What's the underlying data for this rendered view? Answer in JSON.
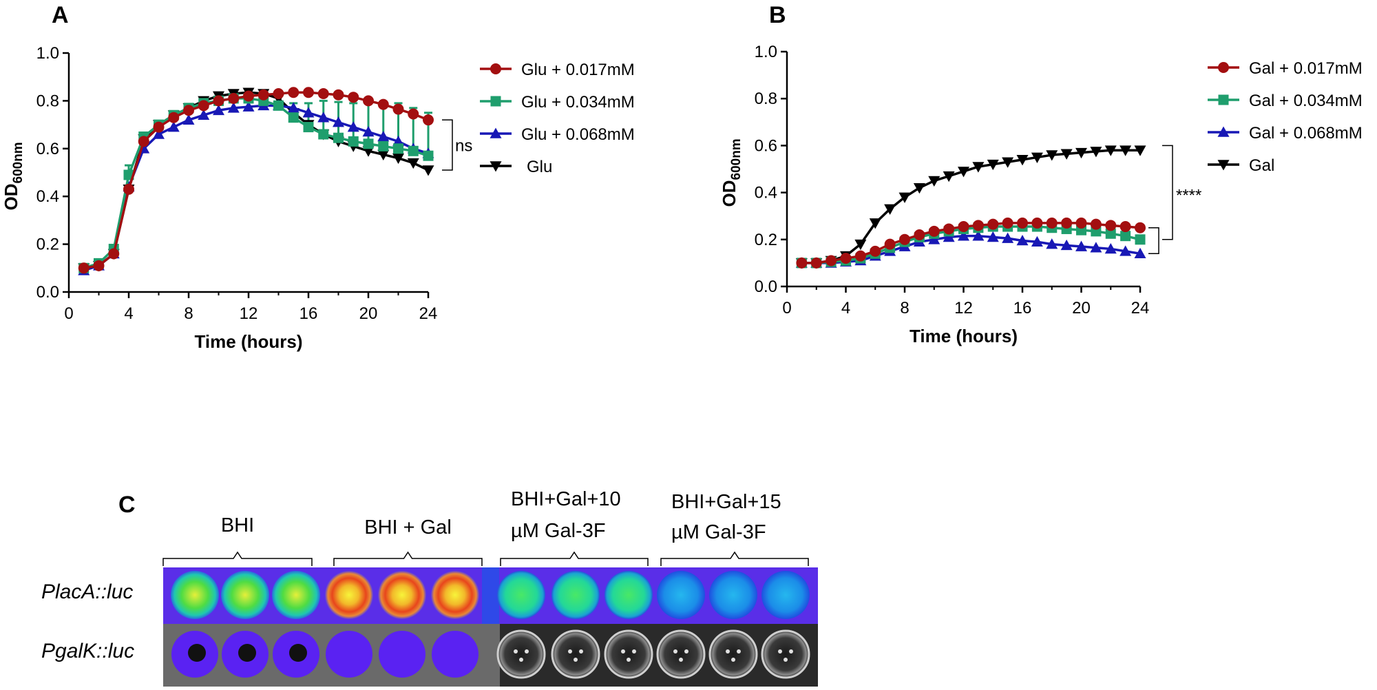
{
  "colors": {
    "red": "#a30f10",
    "green": "#1f9e6d",
    "blue": "#1818b5",
    "black": "#000000"
  },
  "chart_data": [
    {
      "id": "A",
      "type": "line",
      "panel_label": "A",
      "title": "",
      "xlabel": "Time (hours)",
      "ylabel_main": "OD",
      "ylabel_sub": "600nm",
      "xlim": [
        0,
        24
      ],
      "ylim": [
        0.0,
        1.0
      ],
      "xticks": [
        0,
        4,
        8,
        12,
        16,
        20,
        24
      ],
      "yticks": [
        "0.0",
        "0.2",
        "0.4",
        "0.6",
        "0.8",
        "1.0"
      ],
      "grid": false,
      "legend_position": "right",
      "x": [
        1,
        2,
        3,
        4,
        5,
        6,
        7,
        8,
        9,
        10,
        11,
        12,
        13,
        14,
        15,
        16,
        17,
        18,
        19,
        20,
        21,
        22,
        23,
        24
      ],
      "series": [
        {
          "name": "Glu + 0.017mM",
          "color": "#a30f10",
          "marker": "circle",
          "values": [
            0.1,
            0.11,
            0.16,
            0.43,
            0.63,
            0.69,
            0.73,
            0.76,
            0.78,
            0.8,
            0.81,
            0.82,
            0.825,
            0.83,
            0.835,
            0.835,
            0.83,
            0.825,
            0.815,
            0.8,
            0.785,
            0.765,
            0.745,
            0.72
          ]
        },
        {
          "name": "Glu + 0.034mM",
          "color": "#1f9e6d",
          "marker": "square",
          "values": [
            0.1,
            0.12,
            0.18,
            0.49,
            0.65,
            0.7,
            0.74,
            0.77,
            0.79,
            0.8,
            0.81,
            0.81,
            0.8,
            0.78,
            0.73,
            0.69,
            0.66,
            0.645,
            0.63,
            0.62,
            0.61,
            0.6,
            0.59,
            0.57
          ],
          "error": [
            0,
            0.01,
            0.01,
            0.04,
            0.01,
            0.01,
            0.01,
            0.01,
            0.01,
            0.01,
            0.01,
            0.01,
            0.01,
            0.01,
            0.06,
            0.1,
            0.14,
            0.15,
            0.16,
            0.17,
            0.18,
            0.19,
            0.18,
            0.18
          ]
        },
        {
          "name": "Glu + 0.068mM",
          "color": "#1818b5",
          "marker": "triangle-up",
          "values": [
            0.09,
            0.11,
            0.16,
            0.44,
            0.6,
            0.66,
            0.69,
            0.72,
            0.74,
            0.76,
            0.77,
            0.775,
            0.78,
            0.78,
            0.77,
            0.75,
            0.73,
            0.71,
            0.69,
            0.67,
            0.65,
            0.63,
            0.6,
            0.58
          ]
        },
        {
          "name": "Glu",
          "color": "#000000",
          "marker": "triangle-down",
          "values": [
            0.1,
            0.11,
            0.16,
            0.43,
            0.64,
            0.7,
            0.74,
            0.77,
            0.8,
            0.82,
            0.83,
            0.835,
            0.83,
            0.81,
            0.75,
            0.7,
            0.66,
            0.63,
            0.61,
            0.59,
            0.575,
            0.56,
            0.54,
            0.51
          ]
        }
      ],
      "annotation": {
        "text": "ns",
        "from": 0.51,
        "to": 0.72
      }
    },
    {
      "id": "B",
      "type": "line",
      "panel_label": "B",
      "title": "",
      "xlabel": "Time (hours)",
      "ylabel_main": "OD",
      "ylabel_sub": "600nm",
      "xlim": [
        0,
        24
      ],
      "ylim": [
        0.0,
        1.0
      ],
      "xticks": [
        0,
        4,
        8,
        12,
        16,
        20,
        24
      ],
      "yticks": [
        "0.0",
        "0.2",
        "0.4",
        "0.6",
        "0.8",
        "1.0"
      ],
      "grid": false,
      "legend_position": "right",
      "x": [
        1,
        2,
        3,
        4,
        5,
        6,
        7,
        8,
        9,
        10,
        11,
        12,
        13,
        14,
        15,
        16,
        17,
        18,
        19,
        20,
        21,
        22,
        23,
        24
      ],
      "series": [
        {
          "name": "Gal + 0.017mM",
          "color": "#a30f10",
          "marker": "circle",
          "values": [
            0.1,
            0.1,
            0.11,
            0.12,
            0.13,
            0.15,
            0.18,
            0.2,
            0.22,
            0.235,
            0.245,
            0.255,
            0.26,
            0.265,
            0.27,
            0.27,
            0.27,
            0.27,
            0.27,
            0.27,
            0.265,
            0.26,
            0.255,
            0.25
          ]
        },
        {
          "name": "Gal + 0.034mM",
          "color": "#1f9e6d",
          "marker": "square",
          "values": [
            0.1,
            0.1,
            0.105,
            0.11,
            0.12,
            0.14,
            0.165,
            0.19,
            0.21,
            0.225,
            0.235,
            0.245,
            0.25,
            0.255,
            0.255,
            0.255,
            0.255,
            0.25,
            0.245,
            0.24,
            0.235,
            0.225,
            0.215,
            0.2
          ]
        },
        {
          "name": "Gal + 0.068mM",
          "color": "#1818b5",
          "marker": "triangle-up",
          "values": [
            0.1,
            0.1,
            0.1,
            0.105,
            0.11,
            0.13,
            0.15,
            0.17,
            0.19,
            0.2,
            0.21,
            0.215,
            0.215,
            0.21,
            0.205,
            0.195,
            0.19,
            0.18,
            0.175,
            0.17,
            0.165,
            0.16,
            0.15,
            0.14
          ]
        },
        {
          "name": "Gal",
          "color": "#000000",
          "marker": "triangle-down",
          "values": [
            0.1,
            0.1,
            0.11,
            0.13,
            0.18,
            0.27,
            0.33,
            0.38,
            0.42,
            0.45,
            0.47,
            0.49,
            0.51,
            0.52,
            0.53,
            0.54,
            0.55,
            0.56,
            0.565,
            0.57,
            0.575,
            0.58,
            0.58,
            0.58
          ]
        }
      ],
      "annotation": {
        "text": "****",
        "outer_from": 0.2,
        "outer_to": 0.6,
        "inner_from": 0.14,
        "inner_to": 0.25
      }
    }
  ],
  "panel_c": {
    "label": "C",
    "conditions": [
      {
        "line1": "BHI",
        "line2": ""
      },
      {
        "line1": "BHI + Gal",
        "line2": ""
      },
      {
        "line1": "BHI+Gal+10",
        "line2": "µM Gal-3F"
      },
      {
        "line1": "BHI+Gal+15",
        "line2": "µM Gal-3F"
      }
    ],
    "rows": [
      {
        "label": "PlacA::luc",
        "intensity": [
          0.55,
          0.55,
          0.55,
          0.95,
          0.95,
          0.95,
          0.45,
          0.45,
          0.45,
          0.25,
          0.25,
          0.25
        ]
      },
      {
        "label": "PgalK::luc",
        "intensity": [
          0.05,
          0.05,
          0.05,
          0.08,
          0.08,
          0.08,
          0,
          0,
          0,
          0,
          0,
          0
        ]
      }
    ]
  }
}
